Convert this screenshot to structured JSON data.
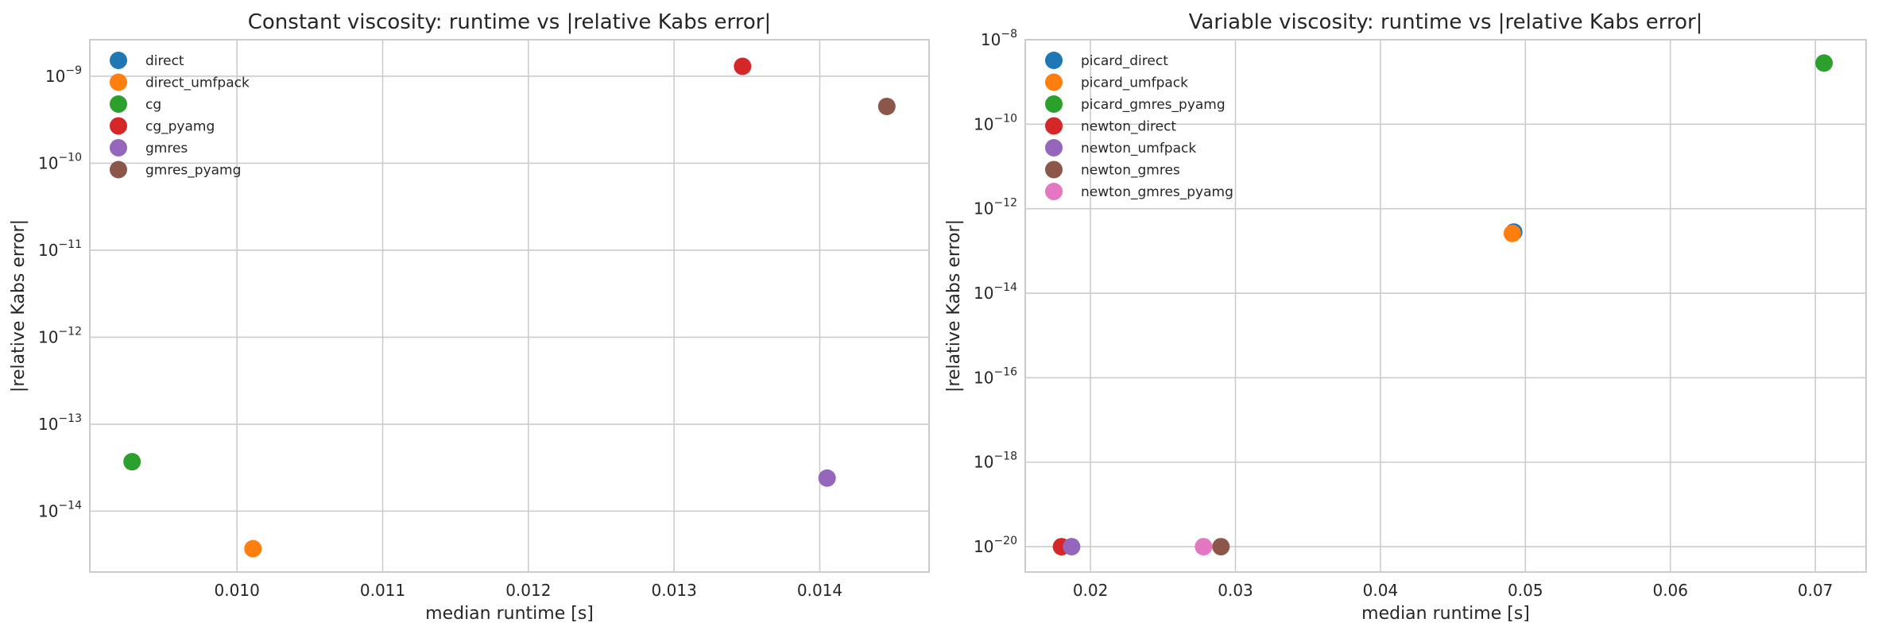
{
  "chart_data": [
    {
      "type": "scatter",
      "title": "Constant viscosity: runtime vs |relative Kabs error|",
      "xlabel": "median runtime [s]",
      "ylabel": "|relative Kabs error|",
      "xscale": "linear",
      "yscale": "log",
      "xlim": [
        0.00899,
        0.01475
      ],
      "ylim_log10": [
        -14.7,
        -8.58
      ],
      "xticks": [
        0.01,
        0.011,
        0.012,
        0.013,
        0.014
      ],
      "xtick_labels": [
        "0.010",
        "0.011",
        "0.012",
        "0.013",
        "0.014"
      ],
      "ytick_exponents": [
        -14,
        -13,
        -12,
        -11,
        -10,
        -9
      ],
      "ytick_base": "10",
      "ytick_labels": [
        "−14",
        "−13",
        "−12",
        "−11",
        "−10",
        "−9"
      ],
      "grid": true,
      "legend_position": "top-left",
      "series": [
        {
          "name": "direct",
          "color": "#1f77b4",
          "points": []
        },
        {
          "name": "direct_umfpack",
          "color": "#ff7f0e",
          "points": [
            [
              0.01011,
              3.7e-15
            ]
          ]
        },
        {
          "name": "cg",
          "color": "#2ca02c",
          "points": [
            [
              0.00928,
              3.7e-14
            ]
          ]
        },
        {
          "name": "cg_pyamg",
          "color": "#d62728",
          "points": [
            [
              0.01347,
              1.3e-09
            ]
          ]
        },
        {
          "name": "gmres",
          "color": "#9467bd",
          "points": [
            [
              0.01405,
              2.4e-14
            ]
          ]
        },
        {
          "name": "gmres_pyamg",
          "color": "#8c564b",
          "points": [
            [
              0.01446,
              4.5e-10
            ]
          ]
        }
      ]
    },
    {
      "type": "scatter",
      "title": "Variable viscosity: runtime vs |relative Kabs error|",
      "xlabel": "median runtime [s]",
      "ylabel": "|relative Kabs error|",
      "xscale": "linear",
      "yscale": "log",
      "xlim": [
        0.0155,
        0.0735
      ],
      "ylim_log10": [
        -20.6,
        -8.0
      ],
      "xticks": [
        0.02,
        0.03,
        0.04,
        0.05,
        0.06,
        0.07
      ],
      "xtick_labels": [
        "0.02",
        "0.03",
        "0.04",
        "0.05",
        "0.06",
        "0.07"
      ],
      "ytick_exponents": [
        -20,
        -18,
        -16,
        -14,
        -12,
        -10,
        -8
      ],
      "ytick_base": "10",
      "ytick_labels": [
        "−20",
        "−18",
        "−16",
        "−14",
        "−12",
        "−10",
        "−8"
      ],
      "grid": true,
      "legend_position": "top-left",
      "series": [
        {
          "name": "picard_direct",
          "color": "#1f77b4",
          "points": [
            [
              0.0492,
              2.8e-13
            ]
          ]
        },
        {
          "name": "picard_umfpack",
          "color": "#ff7f0e",
          "points": [
            [
              0.0491,
              2.6e-13
            ]
          ]
        },
        {
          "name": "picard_gmres_pyamg",
          "color": "#2ca02c",
          "points": [
            [
              0.0706,
              2.8e-09
            ]
          ]
        },
        {
          "name": "newton_direct",
          "color": "#d62728",
          "points": [
            [
              0.018,
              1e-20
            ]
          ]
        },
        {
          "name": "newton_umfpack",
          "color": "#9467bd",
          "points": [
            [
              0.0187,
              1e-20
            ]
          ]
        },
        {
          "name": "newton_gmres",
          "color": "#8c564b",
          "points": [
            [
              0.029,
              1e-20
            ]
          ]
        },
        {
          "name": "newton_gmres_pyamg",
          "color": "#e377c2",
          "points": [
            [
              0.0278,
              1e-20
            ]
          ]
        }
      ]
    }
  ]
}
